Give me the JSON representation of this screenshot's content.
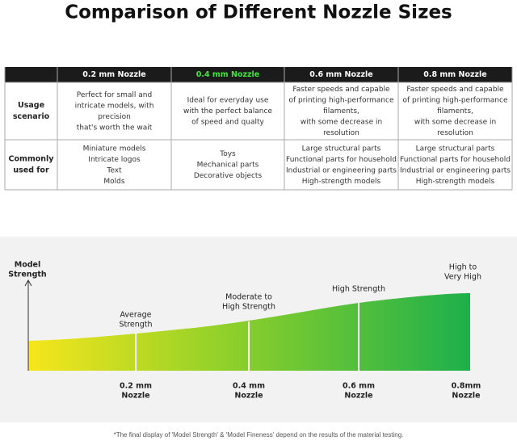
{
  "title": "Comparison of Different Nozzle Sizes",
  "table": {
    "headers": [
      "0.2 mm Nozzle",
      "0.4 mm Nozzle",
      "0.6 mm Nozzle",
      "0.8 mm Nozzle"
    ],
    "rows": [
      {
        "label": [
          "Usage",
          "scenario"
        ],
        "cells": [
          [
            "Perfect for small and",
            "intricate models, with",
            "precision",
            "that's worth the wait"
          ],
          [
            "Ideal for everyday use",
            "with the perfect balance",
            "of speed and qualty"
          ],
          [
            "Faster speeds and capable",
            "of printing high-performance",
            "filaments,",
            "with some decrease in",
            "resolution"
          ],
          [
            "Faster speeds and capable",
            "of printing high-performance",
            "filaments,",
            "with some decrease in",
            "resolution"
          ]
        ]
      },
      {
        "label": [
          "Commonly",
          "used for"
        ],
        "cells": [
          [
            "Miniature models",
            "Intricate logos",
            "Text",
            "Molds"
          ],
          [
            "Toys",
            "Mechanical parts",
            "Decorative objects"
          ],
          [
            "Large structural parts",
            "Functional parts for household",
            "Industrial or engineering parts",
            "High-strength models"
          ],
          [
            "Large structural parts",
            "Functional parts for household",
            "Industrial or engineering parts",
            "High-strength models"
          ]
        ]
      }
    ]
  },
  "diagram": {
    "axis_label": [
      "Model",
      "Strength"
    ],
    "levels": [
      [
        "Average",
        "Strength"
      ],
      [
        "Moderate to",
        "High Strength"
      ],
      [
        "High Strength"
      ],
      [
        "High to",
        "Very High"
      ]
    ],
    "nozzles": [
      [
        "0.2 mm",
        "Nozzle"
      ],
      [
        "0.4 mm",
        "Nozzle"
      ],
      [
        "0.6 mm",
        "Nozzle"
      ],
      [
        "0.8mm",
        "Nozzle"
      ]
    ]
  },
  "footnote": "*The final display of 'Model Strength' & 'Model Fineness' depend on the results of the material testing."
}
